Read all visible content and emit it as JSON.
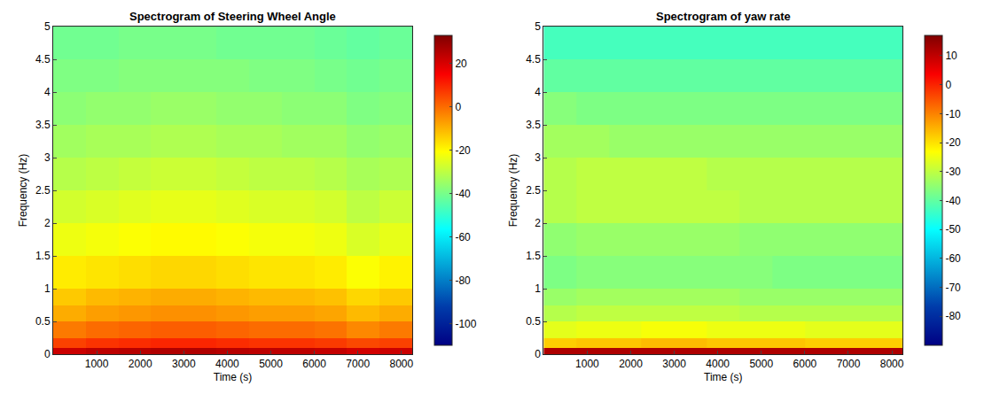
{
  "chart_data": [
    {
      "type": "heatmap",
      "title": "Spectrogram of Steering Wheel Angle",
      "x_label": "Time (s)",
      "y_label": "Frequency (Hz)",
      "xlim": [
        0,
        8250
      ],
      "ylim": [
        0,
        5
      ],
      "xticks": [
        1000,
        2000,
        3000,
        4000,
        5000,
        6000,
        7000,
        8000
      ],
      "yticks": [
        0,
        0.5,
        1,
        1.5,
        2,
        2.5,
        3,
        3.5,
        4,
        4.5,
        5
      ],
      "x_edges": [
        0,
        750,
        1500,
        2250,
        3000,
        3750,
        4500,
        5250,
        6000,
        6750,
        7500,
        8250
      ],
      "y_edges": [
        0,
        0.1,
        0.25,
        0.5,
        0.75,
        1,
        1.5,
        2,
        2.5,
        3,
        3.5,
        4,
        4.5,
        5
      ],
      "z": [
        [
          22,
          24,
          25,
          26,
          26,
          25,
          24,
          24,
          23,
          21,
          22
        ],
        [
          6,
          8,
          9,
          10,
          10,
          9,
          8,
          8,
          7,
          5,
          6
        ],
        [
          -2,
          0,
          1,
          2,
          2,
          1,
          0,
          0,
          -1,
          -4,
          -2
        ],
        [
          -9,
          -7,
          -6,
          -5,
          -5,
          -6,
          -7,
          -7,
          -8,
          -11,
          -9
        ],
        [
          -13,
          -11,
          -10,
          -9,
          -9,
          -10,
          -11,
          -11,
          -12,
          -15,
          -13
        ],
        [
          -18,
          -17,
          -16,
          -15,
          -15,
          -16,
          -17,
          -17,
          -18,
          -21,
          -19
        ],
        [
          -23,
          -22,
          -21,
          -20,
          -20,
          -21,
          -22,
          -22,
          -23,
          -26,
          -24
        ],
        [
          -27,
          -26,
          -25,
          -24,
          -24,
          -25,
          -26,
          -26,
          -27,
          -30,
          -28
        ],
        [
          -31,
          -30,
          -29,
          -28,
          -28,
          -29,
          -30,
          -30,
          -31,
          -33,
          -32
        ],
        [
          -34,
          -33,
          -33,
          -32,
          -32,
          -33,
          -33,
          -34,
          -34,
          -36,
          -35
        ],
        [
          -37,
          -36,
          -36,
          -35,
          -35,
          -36,
          -36,
          -37,
          -37,
          -39,
          -38
        ],
        [
          -39,
          -39,
          -38,
          -38,
          -38,
          -38,
          -39,
          -39,
          -40,
          -41,
          -40
        ],
        [
          -41,
          -41,
          -40,
          -40,
          -40,
          -41,
          -41,
          -41,
          -42,
          -43,
          -42
        ]
      ],
      "colorbar_range": [
        -110,
        33
      ],
      "colorbar_ticks": [
        -100,
        -80,
        -60,
        -40,
        -20,
        0,
        20
      ]
    },
    {
      "type": "heatmap",
      "title": "Spectrogram of yaw rate",
      "x_label": "Time (s)",
      "y_label": "Frequency (Hz)",
      "xlim": [
        0,
        8250
      ],
      "ylim": [
        0,
        5
      ],
      "xticks": [
        1000,
        2000,
        3000,
        4000,
        5000,
        6000,
        7000,
        8000
      ],
      "yticks": [
        0,
        0.5,
        1,
        1.5,
        2,
        2.5,
        3,
        3.5,
        4,
        4.5,
        5
      ],
      "x_edges": [
        0,
        750,
        1500,
        2250,
        3000,
        3750,
        4500,
        5250,
        6000,
        6750,
        7500,
        8250
      ],
      "y_edges": [
        0,
        0.1,
        0.25,
        0.5,
        0.75,
        1,
        1.5,
        2,
        2.5,
        3,
        3.5,
        4,
        4.5,
        5
      ],
      "z": [
        [
          12,
          12,
          12,
          12,
          12,
          12,
          12,
          12,
          12,
          12,
          12
        ],
        [
          -18,
          -17,
          -17,
          -16,
          -16,
          -17,
          -17,
          -17,
          -18,
          -18,
          -18
        ],
        [
          -26,
          -25,
          -25,
          -24,
          -24,
          -25,
          -25,
          -25,
          -26,
          -26,
          -26
        ],
        [
          -31,
          -30,
          -30,
          -30,
          -30,
          -30,
          -31,
          -31,
          -31,
          -31,
          -31
        ],
        [
          -34,
          -33,
          -33,
          -33,
          -33,
          -33,
          -34,
          -34,
          -34,
          -34,
          -34
        ],
        [
          -37,
          -36,
          -36,
          -36,
          -36,
          -36,
          -36,
          -37,
          -37,
          -37,
          -37
        ],
        [
          -35,
          -34,
          -34,
          -34,
          -34,
          -34,
          -35,
          -35,
          -35,
          -35,
          -35
        ],
        [
          -31,
          -30,
          -30,
          -30,
          -30,
          -30,
          -31,
          -31,
          -31,
          -31,
          -31
        ],
        [
          -31,
          -30,
          -30,
          -30,
          -30,
          -31,
          -31,
          -31,
          -31,
          -31,
          -31
        ],
        [
          -33,
          -33,
          -34,
          -34,
          -34,
          -34,
          -34,
          -34,
          -34,
          -34,
          -34
        ],
        [
          -36,
          -37,
          -37,
          -37,
          -37,
          -37,
          -37,
          -37,
          -37,
          -37,
          -37
        ],
        [
          -40,
          -40,
          -40,
          -40,
          -40,
          -40,
          -40,
          -40,
          -40,
          -40,
          -40
        ],
        [
          -43,
          -43,
          -43,
          -43,
          -43,
          -43,
          -43,
          -43,
          -43,
          -43,
          -43
        ]
      ],
      "colorbar_range": [
        -90,
        17
      ],
      "colorbar_ticks": [
        -80,
        -70,
        -60,
        -50,
        -40,
        -30,
        -20,
        -10,
        0,
        10
      ]
    }
  ]
}
